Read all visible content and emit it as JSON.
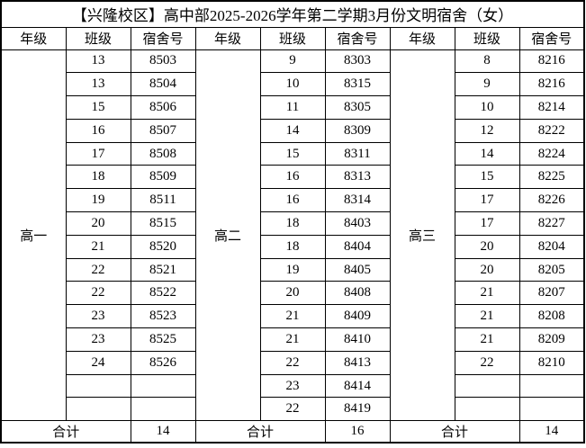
{
  "title": "【兴隆校区】高中部2025-2026学年第二学期3月份文明宿舍（女）",
  "header_columns": [
    "年级",
    "班级",
    "宿舍号"
  ],
  "summary_label": "合计",
  "colors": {
    "border": "#000000",
    "text": "#000000",
    "background": "#ffffff"
  },
  "groups": [
    {
      "grade": "高一",
      "total": "14",
      "rows": [
        [
          "13",
          "8503"
        ],
        [
          "13",
          "8504"
        ],
        [
          "15",
          "8506"
        ],
        [
          "16",
          "8507"
        ],
        [
          "17",
          "8508"
        ],
        [
          "18",
          "8509"
        ],
        [
          "19",
          "8511"
        ],
        [
          "20",
          "8515"
        ],
        [
          "21",
          "8520"
        ],
        [
          "22",
          "8521"
        ],
        [
          "22",
          "8522"
        ],
        [
          "23",
          "8523"
        ],
        [
          "23",
          "8525"
        ],
        [
          "24",
          "8526"
        ],
        [
          "",
          ""
        ],
        [
          "",
          ""
        ]
      ]
    },
    {
      "grade": "高二",
      "total": "16",
      "rows": [
        [
          "9",
          "8303"
        ],
        [
          "10",
          "8315"
        ],
        [
          "11",
          "8305"
        ],
        [
          "14",
          "8309"
        ],
        [
          "15",
          "8311"
        ],
        [
          "16",
          "8313"
        ],
        [
          "16",
          "8314"
        ],
        [
          "18",
          "8403"
        ],
        [
          "18",
          "8404"
        ],
        [
          "19",
          "8405"
        ],
        [
          "20",
          "8408"
        ],
        [
          "21",
          "8409"
        ],
        [
          "21",
          "8410"
        ],
        [
          "22",
          "8413"
        ],
        [
          "23",
          "8414"
        ],
        [
          "22",
          "8419"
        ]
      ]
    },
    {
      "grade": "高三",
      "total": "14",
      "rows": [
        [
          "8",
          "8216"
        ],
        [
          "9",
          "8216"
        ],
        [
          "10",
          "8214"
        ],
        [
          "12",
          "8222"
        ],
        [
          "14",
          "8224"
        ],
        [
          "15",
          "8225"
        ],
        [
          "17",
          "8226"
        ],
        [
          "17",
          "8227"
        ],
        [
          "20",
          "8204"
        ],
        [
          "20",
          "8205"
        ],
        [
          "21",
          "8207"
        ],
        [
          "21",
          "8208"
        ],
        [
          "21",
          "8209"
        ],
        [
          "22",
          "8210"
        ],
        [
          "",
          ""
        ],
        [
          "",
          ""
        ]
      ]
    }
  ]
}
